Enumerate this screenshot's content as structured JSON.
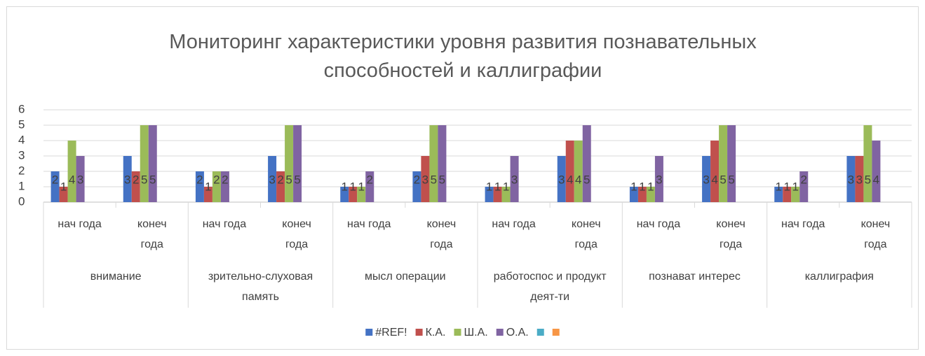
{
  "chart_data": {
    "type": "bar",
    "title": "Мониторинг характеристики уровня развития познавательных способностей и каллиграфии",
    "categories": [
      "нач года",
      "конеч года",
      "нач года",
      "конеч года",
      "нач года",
      "конеч года",
      "нач года",
      "конеч года",
      "нач года",
      "конеч года",
      "нач года",
      "конеч года"
    ],
    "groups": [
      "внимание",
      "зрительно-слуховая память",
      "мысл операции",
      "работоспос и продукт деят-ти",
      "познават интерес",
      "каллиграфия"
    ],
    "series": [
      {
        "name": "#REF!",
        "color": "#4472c4",
        "values": [
          2,
          3,
          2,
          3,
          1,
          2,
          1,
          3,
          1,
          3,
          1,
          3
        ]
      },
      {
        "name": "К.А.",
        "color": "#c0504d",
        "values": [
          1,
          2,
          1,
          2,
          1,
          3,
          1,
          4,
          1,
          4,
          1,
          3
        ]
      },
      {
        "name": "Ш.А.",
        "color": "#9bbb59",
        "values": [
          4,
          5,
          2,
          5,
          1,
          5,
          1,
          4,
          1,
          5,
          1,
          5
        ]
      },
      {
        "name": "О.А.",
        "color": "#8064a2",
        "values": [
          3,
          5,
          2,
          5,
          2,
          5,
          3,
          5,
          3,
          5,
          2,
          4
        ]
      },
      {
        "name": null,
        "color": "#4bacc6",
        "values": [
          null,
          null,
          null,
          null,
          null,
          null,
          null,
          null,
          null,
          null,
          null,
          null
        ]
      },
      {
        "name": null,
        "color": "#f79646",
        "values": [
          null,
          null,
          null,
          null,
          null,
          null,
          null,
          null,
          null,
          null,
          null,
          null
        ]
      }
    ],
    "ylim": [
      0,
      6
    ],
    "yticks": [
      0,
      1,
      2,
      3,
      4,
      5,
      6
    ],
    "grid": true,
    "data_labels": true,
    "legend": "bottom"
  }
}
